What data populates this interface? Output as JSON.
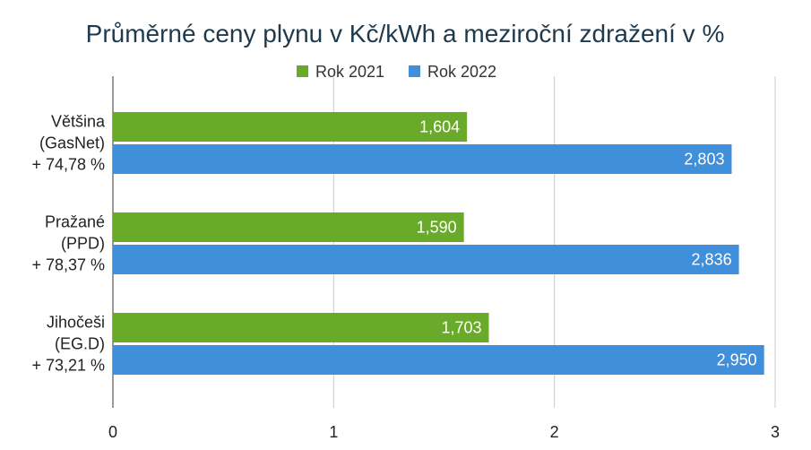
{
  "chart_data": {
    "type": "bar",
    "orientation": "horizontal",
    "title": "Průměrné ceny plynu v Kč/kWh a meziroční zdražení v %",
    "categories": [
      [
        "Většina",
        "(GasNet)",
        "+ 74,78 %"
      ],
      [
        "Pražané",
        "(PPD)",
        "+ 78,37 %"
      ],
      [
        "Jihočeši",
        "(EG.D)",
        "+ 73,21 %"
      ]
    ],
    "series": [
      {
        "name": "Rok 2021",
        "color": "#6aaa2a",
        "values": [
          1.604,
          1.59,
          1.703
        ],
        "labels": [
          "1,604",
          "1,590",
          "1,703"
        ]
      },
      {
        "name": "Rok 2022",
        "color": "#3f8fdb",
        "values": [
          2.803,
          2.836,
          2.95
        ],
        "labels": [
          "2,803",
          "2,836",
          "2,950"
        ]
      }
    ],
    "xlim": [
      0,
      3
    ],
    "xticks": [
      {
        "value": 0,
        "label": "0"
      },
      {
        "value": 1,
        "label": "1"
      },
      {
        "value": 2,
        "label": "2"
      },
      {
        "value": 3,
        "label": "3"
      }
    ],
    "grid": true,
    "legend_position": "top-center"
  }
}
